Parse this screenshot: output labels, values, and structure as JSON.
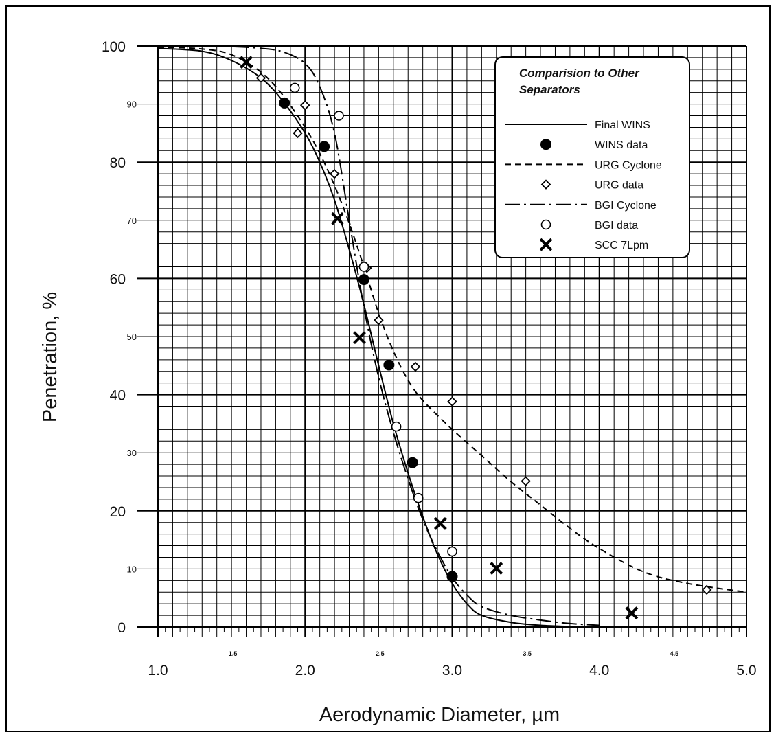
{
  "chart_data": {
    "type": "line",
    "title": "",
    "xlabel": "Aerodynamic Diameter, µm",
    "ylabel": "Penetration, %",
    "xlim": [
      1.0,
      5.0
    ],
    "ylim": [
      0,
      100
    ],
    "grid": true,
    "legend_position": "top-right",
    "legend_title": "Comparision to Other Separators",
    "x_ticks_major": [
      "1.0",
      "2.0",
      "3.0",
      "4.0",
      "5.0"
    ],
    "x_ticks_half": [
      "1.5",
      "2.5",
      "3.5",
      "4.5"
    ],
    "y_ticks_major": [
      "0",
      "20",
      "40",
      "60",
      "80",
      "100"
    ],
    "y_ticks_minor": [
      "10",
      "30",
      "50",
      "70",
      "90"
    ],
    "series": [
      {
        "name": "Final WINS",
        "kind": "line",
        "style": "solid",
        "x": [
          1.0,
          1.3,
          1.5,
          1.7,
          1.85,
          2.0,
          2.1,
          2.2,
          2.3,
          2.4,
          2.5,
          2.6,
          2.7,
          2.8,
          2.9,
          3.0,
          3.1,
          3.2,
          3.4,
          3.6,
          3.8,
          4.0
        ],
        "y": [
          99.6,
          99.1,
          97.5,
          94.5,
          90.5,
          85,
          80,
          73.5,
          65,
          55.5,
          45,
          35,
          26.5,
          19,
          12.5,
          7.5,
          4,
          2,
          0.8,
          0.3,
          0.1,
          0
        ]
      },
      {
        "name": "WINS data",
        "kind": "scatter",
        "marker": "filled-circle",
        "x": [
          1.86,
          2.13,
          2.4,
          2.57,
          2.73,
          3.0
        ],
        "y": [
          90.2,
          82.7,
          59.8,
          45.1,
          28.3,
          8.7
        ]
      },
      {
        "name": "URG Cyclone",
        "kind": "line",
        "style": "dashed",
        "x": [
          1.0,
          1.3,
          1.5,
          1.7,
          1.85,
          2.0,
          2.1,
          2.2,
          2.3,
          2.4,
          2.5,
          2.6,
          2.7,
          2.8,
          3.0,
          3.2,
          3.4,
          3.6,
          3.8,
          4.0,
          4.3,
          4.6,
          5.0
        ],
        "y": [
          99.8,
          99.5,
          98.5,
          95.5,
          91.5,
          86,
          81.5,
          76,
          69.5,
          62,
          54,
          47.5,
          42.5,
          39,
          34,
          29.5,
          25,
          21,
          17,
          13.5,
          9.5,
          7.5,
          6
        ]
      },
      {
        "name": "URG data",
        "kind": "scatter",
        "marker": "open-diamond",
        "x": [
          1.7,
          1.95,
          2.0,
          2.2,
          2.42,
          2.5,
          2.75,
          3.0,
          3.5,
          4.73
        ],
        "y": [
          94.5,
          85,
          89.8,
          78,
          61.8,
          52.8,
          44.8,
          38.8,
          25.1,
          6.4
        ]
      },
      {
        "name": "BGI Cyclone",
        "kind": "line",
        "style": "dash-dot",
        "x": [
          1.0,
          1.3,
          1.5,
          1.7,
          1.85,
          2.0,
          2.1,
          2.2,
          2.3,
          2.4,
          2.5,
          2.6,
          2.7,
          2.8,
          2.9,
          3.0,
          3.1,
          3.2,
          3.4,
          3.6,
          3.8,
          4.0
        ],
        "y": [
          100,
          100,
          99.9,
          99.6,
          99,
          97,
          93,
          85,
          70,
          55,
          43,
          33.5,
          25.5,
          18.5,
          13,
          8.5,
          5.5,
          3.5,
          2,
          1.2,
          0.6,
          0.3
        ]
      },
      {
        "name": "BGI data",
        "kind": "scatter",
        "marker": "open-circle",
        "x": [
          1.93,
          2.23,
          2.4,
          2.62,
          2.77,
          3.0
        ],
        "y": [
          92.8,
          88,
          62,
          34.5,
          22.2,
          13
        ]
      },
      {
        "name": "SCC 7Lpm",
        "kind": "scatter",
        "marker": "x",
        "x": [
          1.6,
          2.22,
          2.37,
          2.92,
          3.3,
          4.22
        ],
        "y": [
          97.2,
          70.3,
          49.8,
          17.8,
          10.1,
          2.4
        ]
      }
    ]
  }
}
